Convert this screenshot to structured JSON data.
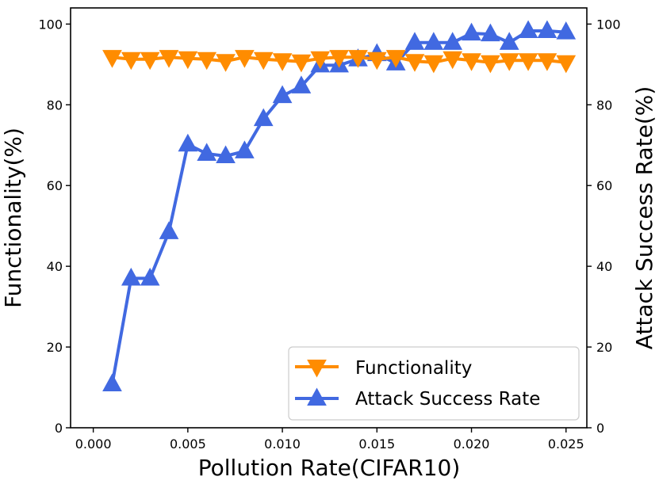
{
  "chart_data": {
    "type": "line",
    "xlabel": "Pollution Rate(CIFAR10)",
    "ylabel_left": "Functionality(%)",
    "ylabel_right": "Attack Success Rate(%)",
    "xlim": [
      -0.0012,
      0.0261
    ],
    "ylim": [
      0,
      104
    ],
    "x_ticks": [
      0.0,
      0.005,
      0.01,
      0.015,
      0.02,
      0.025
    ],
    "x_tick_labels": [
      "0.000",
      "0.005",
      "0.010",
      "0.015",
      "0.020",
      "0.025"
    ],
    "y_ticks": [
      0,
      20,
      40,
      60,
      80,
      100
    ],
    "y_tick_labels": [
      "0",
      "20",
      "40",
      "60",
      "80",
      "100"
    ],
    "legend_position": "lower-right",
    "x": [
      0.001,
      0.002,
      0.003,
      0.004,
      0.005,
      0.006,
      0.007,
      0.008,
      0.009,
      0.01,
      0.011,
      0.012,
      0.013,
      0.014,
      0.015,
      0.016,
      0.017,
      0.018,
      0.019,
      0.02,
      0.021,
      0.022,
      0.023,
      0.024,
      0.025
    ],
    "series": [
      {
        "name": "Functionality",
        "axis": "left",
        "color": "#ff8c00",
        "marker": "triangle-down",
        "values": [
          91.8,
          91.3,
          91.3,
          91.8,
          91.5,
          91.3,
          90.8,
          91.8,
          91.3,
          91.0,
          90.7,
          91.5,
          91.8,
          91.8,
          91.3,
          91.8,
          90.8,
          90.5,
          91.5,
          91.0,
          90.5,
          91.0,
          91.0,
          91.0,
          90.5
        ]
      },
      {
        "name": "Attack Success Rate",
        "axis": "right",
        "color": "#4169e1",
        "marker": "triangle-up",
        "values": [
          10.8,
          37.0,
          37.0,
          48.5,
          70.2,
          67.9,
          67.3,
          68.5,
          76.5,
          82.2,
          84.6,
          89.8,
          89.8,
          91.3,
          92.6,
          90.3,
          95.4,
          95.4,
          95.4,
          97.7,
          97.5,
          95.4,
          98.3,
          98.3,
          98.0
        ]
      }
    ]
  }
}
